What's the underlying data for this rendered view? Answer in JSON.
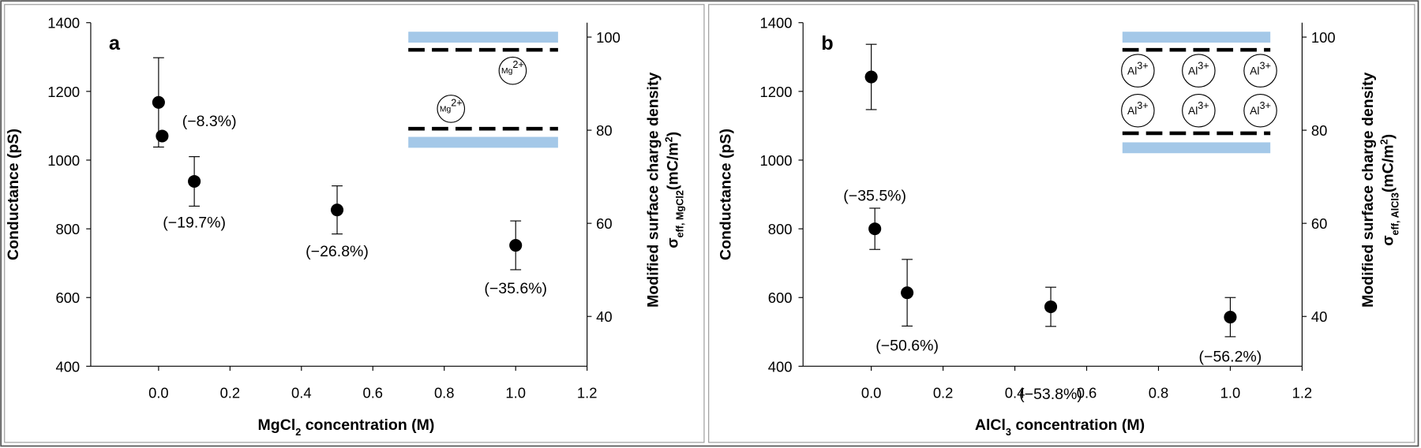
{
  "chart_data": [
    {
      "type": "scatter",
      "panel_label": "a",
      "x": [
        0,
        0.01,
        0.1,
        0.5,
        1
      ],
      "values": [
        1168,
        1070,
        938,
        855,
        752
      ],
      "errors": [
        130,
        null,
        72,
        70,
        71
      ],
      "point_labels": [
        null,
        "(−8.3%)",
        "(−19.7%)",
        "(−26.8%)",
        "(−35.6%)"
      ],
      "color": "#000000",
      "xlim": [
        -0.19,
        1.2
      ],
      "xticks": [
        {
          "value": 0,
          "label": "0.0"
        },
        0.2,
        0.4,
        0.6,
        0.8,
        {
          "value": 1,
          "label": "1.0"
        },
        1.2
      ],
      "ylim": [
        400,
        1400
      ],
      "yticks": [
        400,
        600,
        800,
        1000,
        1200,
        1400
      ],
      "y2lim": [
        29.3,
        103.1
      ],
      "y2ticks": [
        40,
        60,
        80,
        100
      ],
      "xlabel_parts": [
        "MgCl",
        "2",
        " concentration (M)"
      ],
      "ylabel": "Conductance (pS)",
      "y2label": "Modified surface charge density",
      "y2label_parts": [
        "σ",
        "eff, MgCl",
        "2",
        "(mC/m",
        "2",
        ")"
      ],
      "inset_ion_parts": [
        "Mg",
        "2+"
      ]
    },
    {
      "type": "scatter",
      "panel_label": "b",
      "x": [
        0,
        0.01,
        0.1,
        0.5,
        1
      ],
      "values": [
        1242,
        800,
        614,
        573,
        543
      ],
      "errors": [
        95,
        60,
        97,
        57,
        57
      ],
      "point_labels": [
        null,
        "(−35.5%)",
        "(−50.6%)",
        "(−53.8%)",
        "(−56.2%)"
      ],
      "color": "#000000",
      "xlim": [
        -0.19,
        1.2
      ],
      "xticks": [
        {
          "value": 0,
          "label": "0.0"
        },
        0.2,
        0.4,
        0.6,
        0.8,
        {
          "value": 1,
          "label": "1.0"
        },
        1.2
      ],
      "ylim": [
        400,
        1400
      ],
      "yticks": [
        400,
        600,
        800,
        1000,
        1200,
        1400
      ],
      "y2lim": [
        29.3,
        103.1
      ],
      "y2ticks": [
        40,
        60,
        80,
        100
      ],
      "xlabel_parts": [
        "AlCl",
        "3",
        " concentration (M)"
      ],
      "ylabel": "Conductance (pS)",
      "y2label": "Modified surface charge density",
      "y2label_parts": [
        "σ",
        "eff, AlCl",
        "3",
        "(mC/m",
        "2",
        ")"
      ],
      "inset_ion_parts": [
        "Al",
        "3+"
      ]
    }
  ]
}
